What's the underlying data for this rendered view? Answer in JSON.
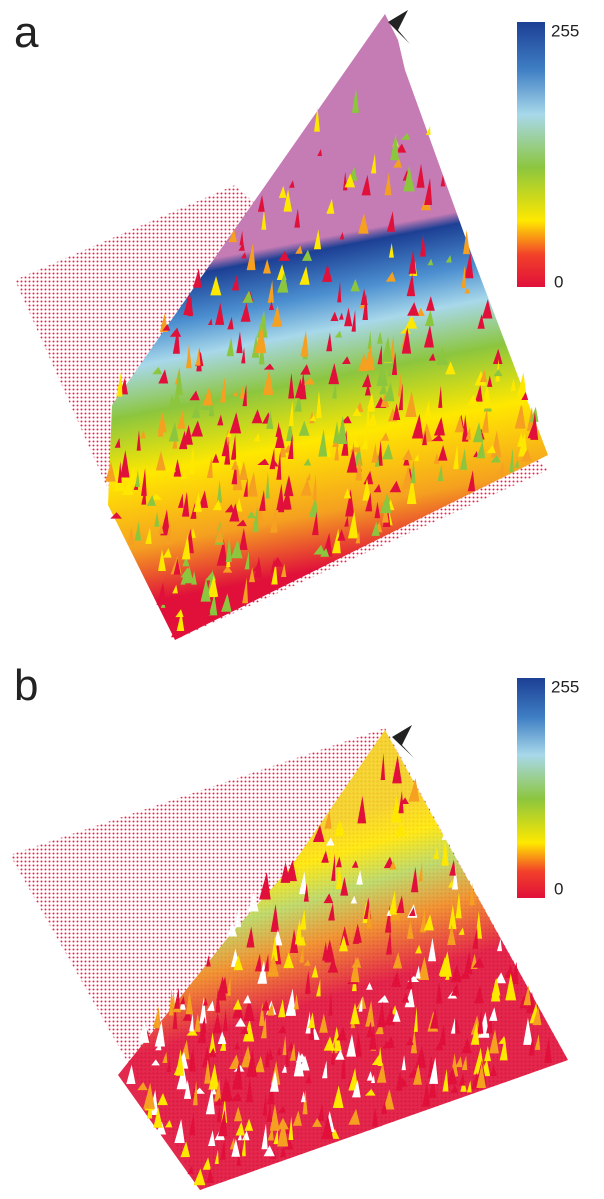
{
  "panels": [
    {
      "label": "a",
      "colorbar": {
        "max_label": "255",
        "min_label": "0"
      }
    },
    {
      "label": "b",
      "colorbar": {
        "max_label": "255",
        "min_label": "0"
      }
    }
  ]
}
